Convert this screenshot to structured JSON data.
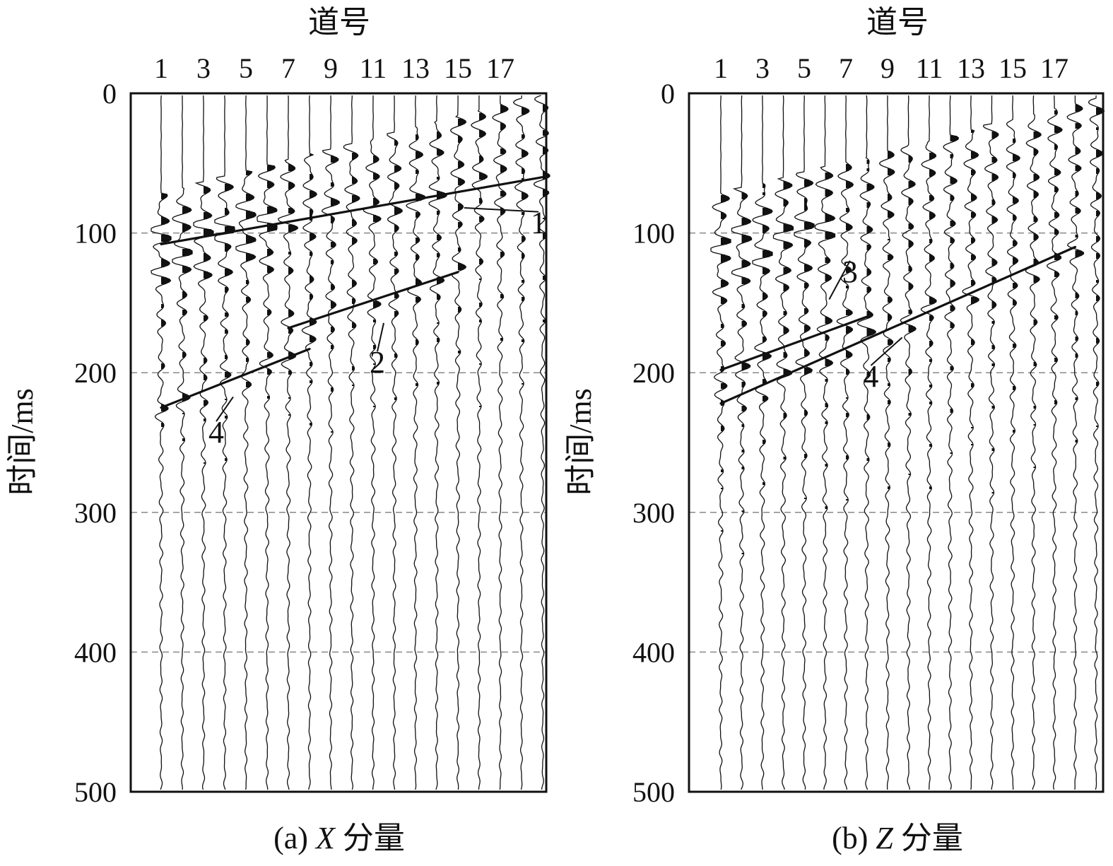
{
  "chart_data": [
    {
      "type": "seismic_wiggle",
      "panel": "a",
      "caption_prefix": "(a) ",
      "caption_var": "X",
      "caption_suffix": " 分量",
      "xlabel": "道号",
      "ylabel": "时间/ms",
      "x_ticks": [
        "1",
        "3",
        "5",
        "7",
        "9",
        "11",
        "13",
        "15",
        "17"
      ],
      "y_ticks": [
        0,
        100,
        200,
        300,
        400,
        500
      ],
      "ylim": [
        0,
        500
      ],
      "traces": [
        1,
        2,
        3,
        4,
        5,
        6,
        7,
        8,
        9,
        10,
        11,
        12,
        13,
        14,
        15,
        16,
        17,
        18,
        19
      ],
      "grid_y": [
        100,
        200,
        300,
        400
      ],
      "events": [
        {
          "label": "1",
          "from": {
            "trace": 1,
            "time": 108
          },
          "to": {
            "trace": 19,
            "time": 60
          },
          "annotation_text_at": {
            "trace": 18.8,
            "time": 100
          }
        },
        {
          "label": "2",
          "from": {
            "trace": 7,
            "time": 168
          },
          "to": {
            "trace": 15,
            "time": 128
          },
          "annotation_text_at": {
            "trace": 11.2,
            "time": 200
          }
        },
        {
          "label": "4",
          "from": {
            "trace": 1,
            "time": 225
          },
          "to": {
            "trace": 8,
            "time": 183
          },
          "annotation_text_at": {
            "trace": 3.6,
            "time": 250
          }
        }
      ]
    },
    {
      "type": "seismic_wiggle",
      "panel": "b",
      "caption_prefix": "(b) ",
      "caption_var": "Z",
      "caption_suffix": " 分量",
      "xlabel": "道号",
      "ylabel": "时间/ms",
      "x_ticks": [
        "1",
        "3",
        "5",
        "7",
        "9",
        "11",
        "13",
        "15",
        "17"
      ],
      "y_ticks": [
        0,
        100,
        200,
        300,
        400,
        500
      ],
      "ylim": [
        0,
        500
      ],
      "traces": [
        1,
        2,
        3,
        4,
        5,
        6,
        7,
        8,
        9,
        10,
        11,
        12,
        13,
        14,
        15,
        16,
        17,
        18,
        19
      ],
      "grid_y": [
        100,
        200,
        300,
        400
      ],
      "events": [
        {
          "label": "3",
          "from": {
            "trace": 1,
            "time": 198
          },
          "to": {
            "trace": 8,
            "time": 160
          },
          "annotation_text_at": {
            "trace": 7.2,
            "time": 135
          }
        },
        {
          "label": "4",
          "from": {
            "trace": 1,
            "time": 222
          },
          "to": {
            "trace": 18,
            "time": 110
          },
          "annotation_text_at": {
            "trace": 8.2,
            "time": 210
          }
        }
      ]
    }
  ]
}
